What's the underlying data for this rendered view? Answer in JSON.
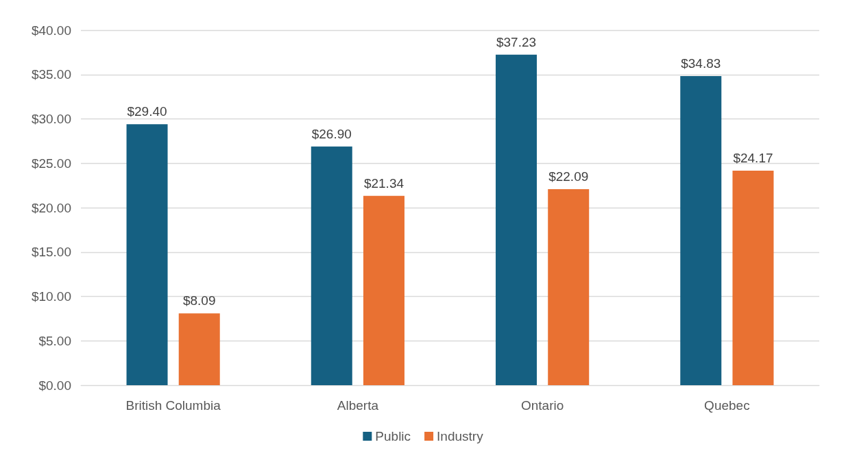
{
  "chart_data": {
    "type": "bar",
    "categories": [
      "British Columbia",
      "Alberta",
      "Ontario",
      "Quebec"
    ],
    "series": [
      {
        "name": "Public",
        "color": "#156082",
        "values": [
          29.4,
          26.9,
          37.23,
          34.83
        ],
        "value_labels": [
          "$29.40",
          "$26.90",
          "$37.23",
          "$34.83"
        ]
      },
      {
        "name": "Industry",
        "color": "#e97132",
        "values": [
          8.09,
          21.34,
          22.09,
          24.17
        ],
        "value_labels": [
          "$8.09",
          "$21.34",
          "$22.09",
          "$24.17"
        ]
      }
    ],
    "ylim": [
      0,
      40
    ],
    "yticks": [
      {
        "value": 0,
        "label": "$0.00"
      },
      {
        "value": 5,
        "label": "$5.00"
      },
      {
        "value": 10,
        "label": "$10.00"
      },
      {
        "value": 15,
        "label": "$15.00"
      },
      {
        "value": 20,
        "label": "$20.00"
      },
      {
        "value": 25,
        "label": "$25.00"
      },
      {
        "value": 30,
        "label": "$30.00"
      },
      {
        "value": 35,
        "label": "$35.00"
      },
      {
        "value": 40,
        "label": "$40.00"
      }
    ],
    "grid": "y",
    "legend": "bottom"
  }
}
